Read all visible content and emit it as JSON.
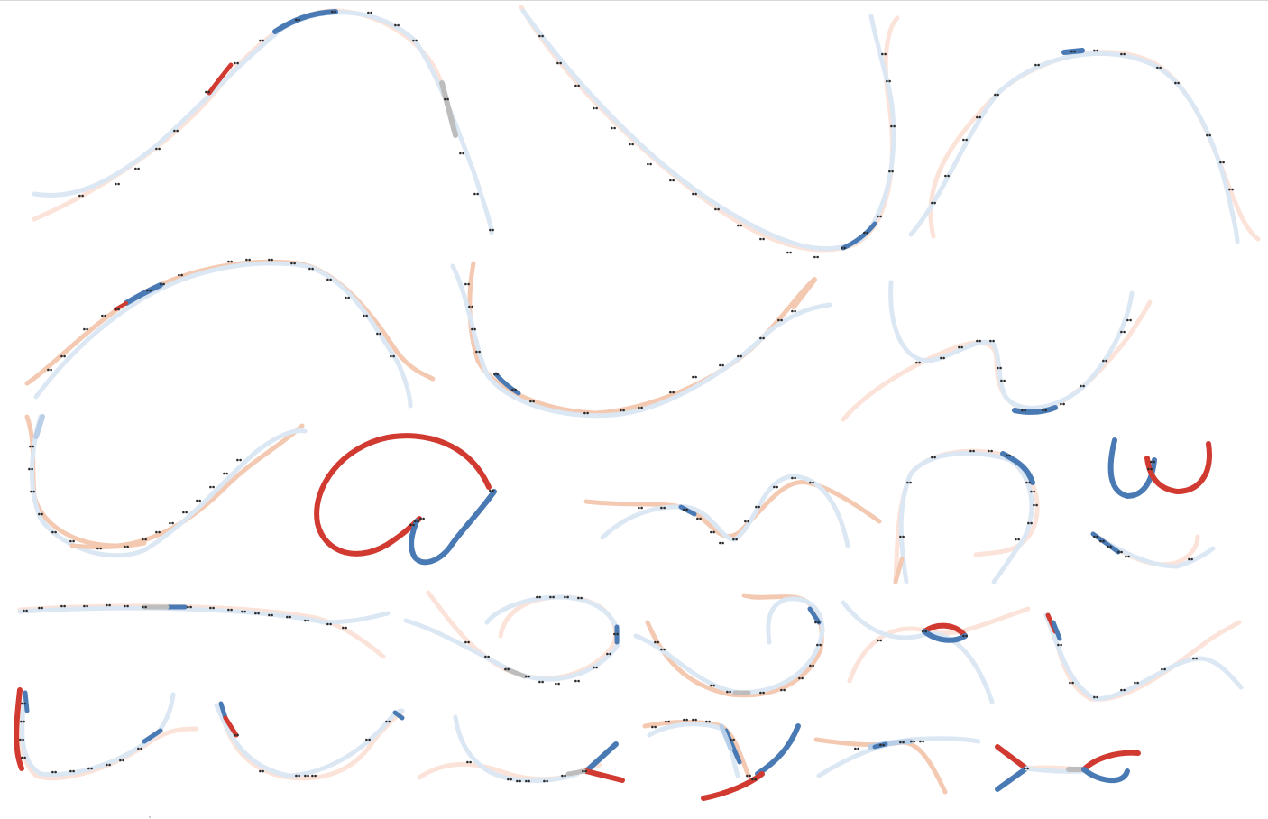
{
  "palette": {
    "red_strong": "#d03a30",
    "red_soft": "#f4c9b2",
    "red_pale": "#fbe3d9",
    "blue_strong": "#4a7ab4",
    "blue_soft": "#b9cfe8",
    "blue_pale": "#dce7f4",
    "gray": "#bdbdbd",
    "marker": "#2a2a2a"
  },
  "panels": [
    {
      "id": "pair-01",
      "colors": [
        "red_pale",
        "blue_pale"
      ],
      "accent": "blue_strong"
    },
    {
      "id": "pair-02",
      "colors": [
        "red_pale",
        "blue_pale"
      ],
      "accent": "blue_strong"
    },
    {
      "id": "pair-03",
      "colors": [
        "red_pale",
        "blue_pale"
      ],
      "accent": "blue_strong"
    },
    {
      "id": "pair-04",
      "colors": [
        "red_soft",
        "blue_pale"
      ],
      "accent": "blue_strong"
    },
    {
      "id": "pair-05",
      "colors": [
        "red_soft",
        "blue_pale"
      ],
      "accent": "red_soft"
    },
    {
      "id": "pair-06",
      "colors": [
        "red_pale",
        "blue_pale"
      ],
      "accent": "blue_strong"
    },
    {
      "id": "pair-07",
      "colors": [
        "red_soft",
        "blue_pale"
      ],
      "accent": "blue_soft"
    },
    {
      "id": "pair-08",
      "colors": [
        "red_strong",
        "blue_strong"
      ],
      "accent": "red_strong"
    },
    {
      "id": "pair-09",
      "colors": [
        "red_soft",
        "blue_pale"
      ],
      "accent": "red_soft"
    },
    {
      "id": "pair-10",
      "colors": [
        "red_pale",
        "blue_pale"
      ],
      "accent": "blue_strong"
    },
    {
      "id": "pair-11",
      "colors": [
        "red_strong",
        "blue_strong"
      ],
      "accent": "red_strong"
    },
    {
      "id": "pair-12",
      "colors": [
        "red_pale",
        "blue_pale"
      ],
      "accent": "blue_strong"
    },
    {
      "id": "pair-13",
      "colors": [
        "red_pale",
        "blue_pale"
      ],
      "accent": "blue_strong"
    },
    {
      "id": "pair-14",
      "colors": [
        "red_pale",
        "blue_pale"
      ],
      "accent": "gray"
    },
    {
      "id": "pair-15",
      "colors": [
        "red_pale",
        "blue_pale"
      ],
      "accent": "blue_strong"
    },
    {
      "id": "pair-16",
      "colors": [
        "red_pale",
        "blue_pale"
      ],
      "accent": "red_strong"
    },
    {
      "id": "pair-17",
      "colors": [
        "red_pale",
        "blue_pale"
      ],
      "accent": "red_strong"
    },
    {
      "id": "pair-18",
      "colors": [
        "red_pale",
        "blue_pale"
      ],
      "accent": "red_strong"
    },
    {
      "id": "pair-19",
      "colors": [
        "red_pale",
        "blue_pale"
      ],
      "accent": "blue_strong"
    },
    {
      "id": "pair-20",
      "colors": [
        "red_pale",
        "blue_pale"
      ],
      "accent": "blue_strong"
    },
    {
      "id": "pair-21",
      "colors": [
        "red_pale",
        "blue_pale"
      ],
      "accent": "blue_strong"
    },
    {
      "id": "pair-22",
      "colors": [
        "red_strong",
        "blue_strong"
      ],
      "accent": "blue_strong"
    },
    {
      "id": "pair-23",
      "colors": [
        "red_soft",
        "blue_soft"
      ],
      "accent": "blue_soft"
    },
    {
      "id": "pair-24",
      "colors": [
        "red_strong",
        "blue_strong"
      ],
      "accent": "gray"
    }
  ]
}
